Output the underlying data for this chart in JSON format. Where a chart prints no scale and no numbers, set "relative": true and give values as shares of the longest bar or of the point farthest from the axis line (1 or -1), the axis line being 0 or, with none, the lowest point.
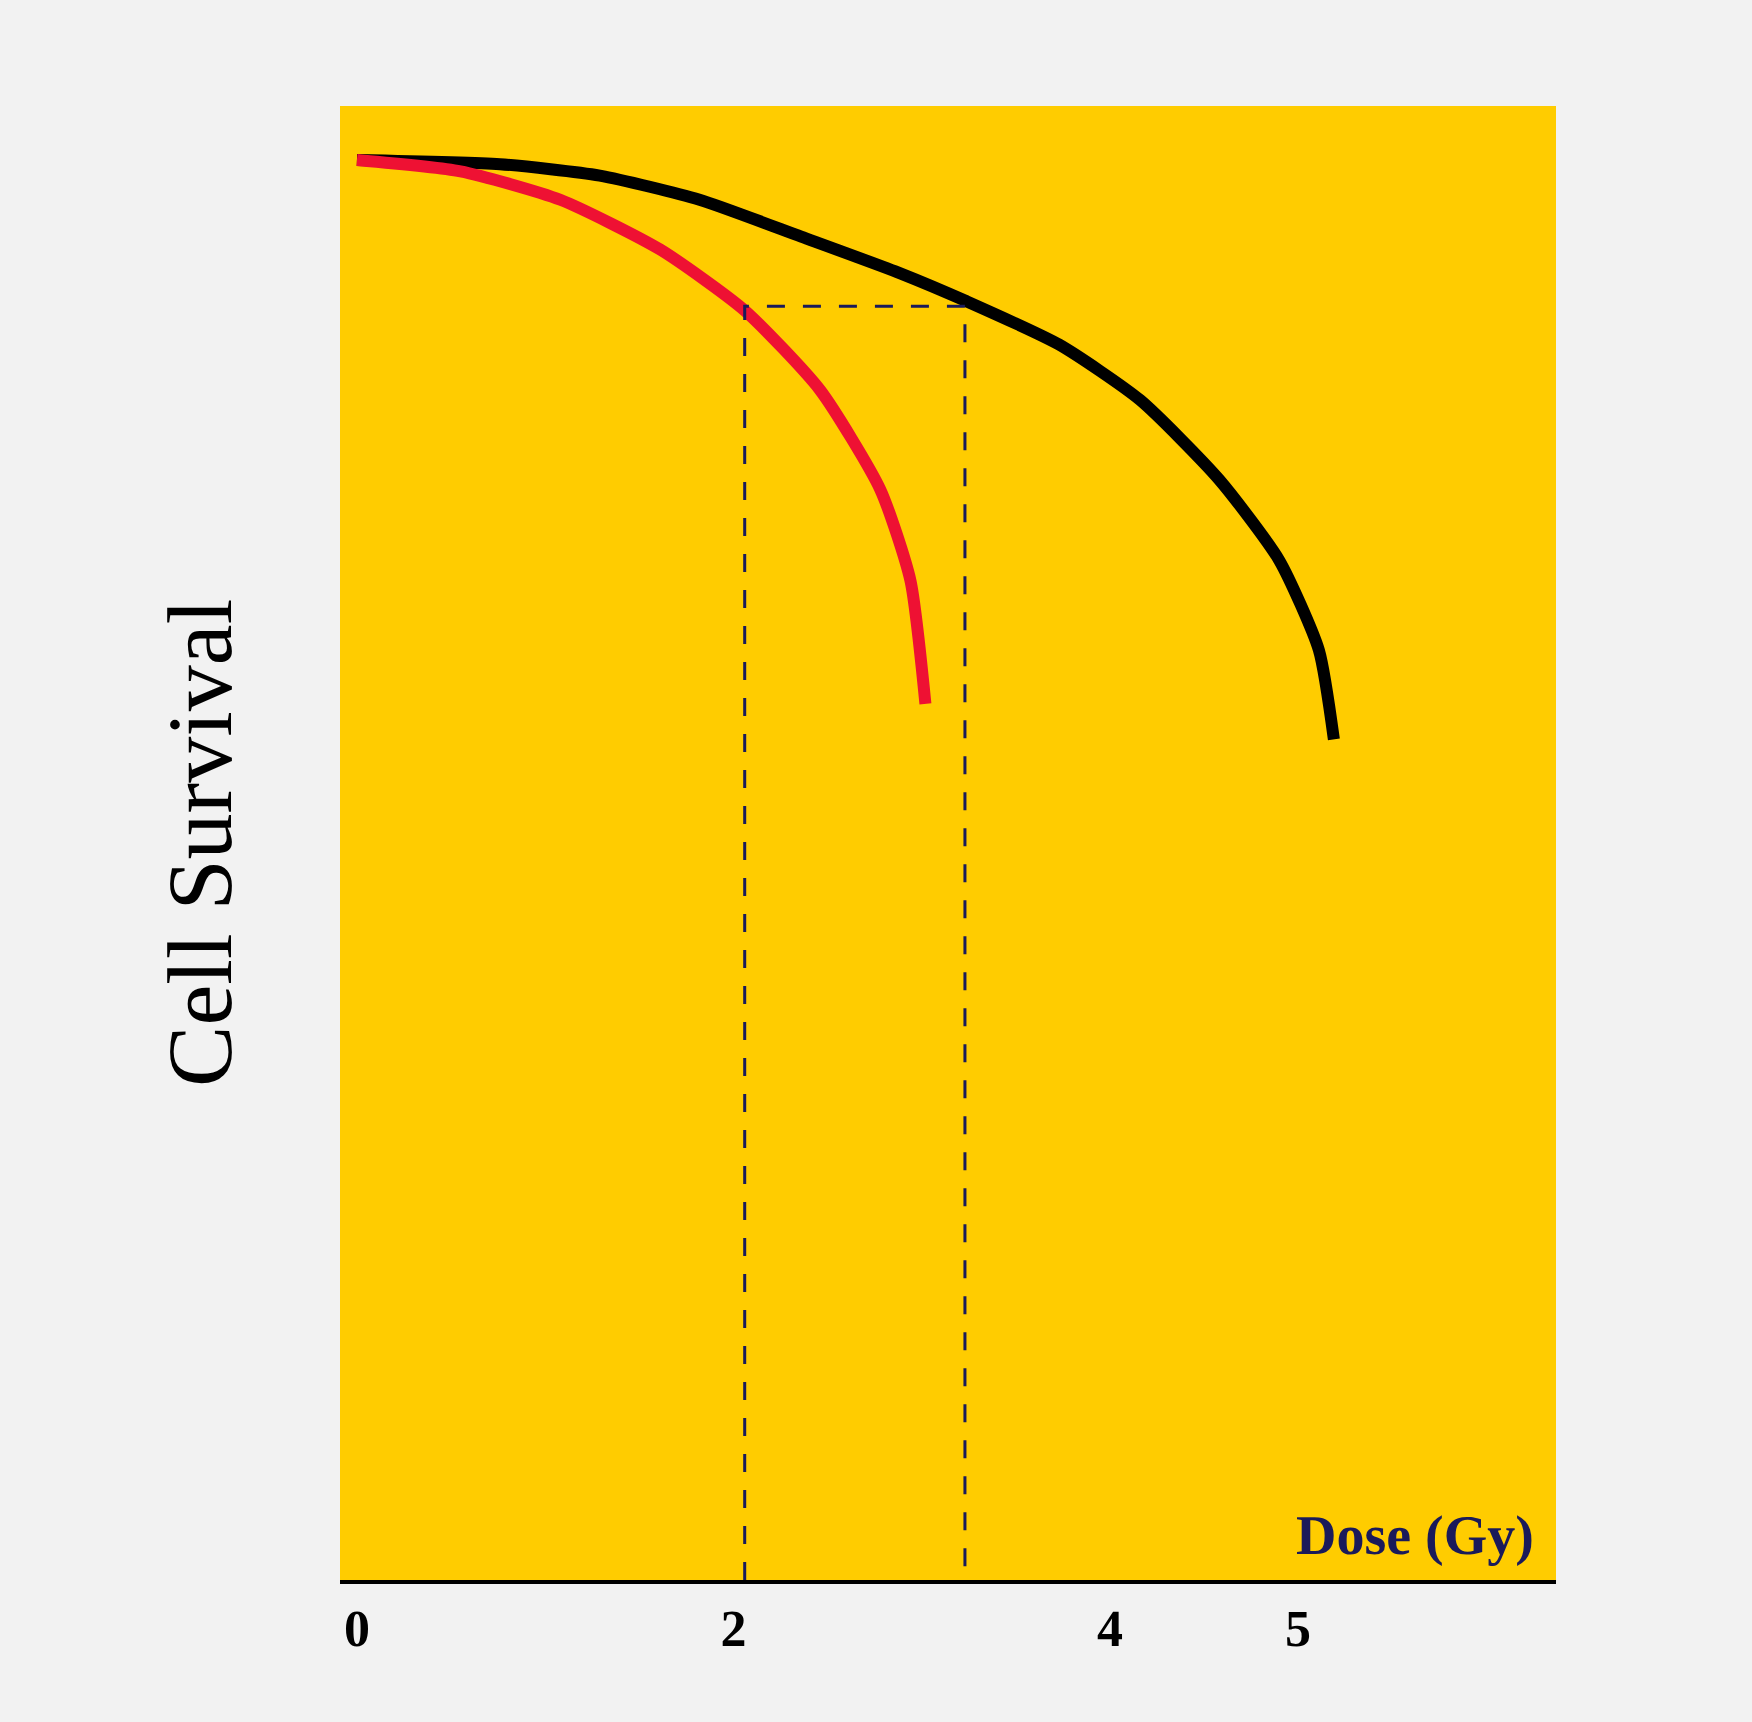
{
  "chart_data": {
    "type": "line",
    "xlabel": "Dose (Gy)",
    "ylabel": "Cell Survival",
    "relative": true,
    "xlim": [
      -0.09,
      6.37
    ],
    "xticks": [
      0,
      2,
      4,
      5
    ],
    "grid": false,
    "legend": false,
    "marker": "none",
    "line_style": "solid",
    "series": [
      {
        "color": "#000000",
        "x": [
          0,
          0.76,
          1.29,
          1.82,
          2.36,
          2.89,
          3.23,
          3.73,
          4.16,
          4.58,
          4.9,
          5.11,
          5.19
        ],
        "values": [
          1,
          0.997,
          0.989,
          0.972,
          0.946,
          0.92,
          0.901,
          0.87,
          0.831,
          0.775,
          0.718,
          0.655,
          0.592
        ]
      },
      {
        "color": "#ee1133",
        "x": [
          0,
          0.55,
          1.08,
          1.61,
          2.06,
          2.46,
          2.78,
          2.94,
          3.02
        ],
        "values": [
          1,
          0.992,
          0.972,
          0.937,
          0.894,
          0.838,
          0.768,
          0.704,
          0.617
        ]
      },
      {
        "color": "#1a1a5a",
        "line_style": "dashed",
        "x": [
          2.06,
          2.06,
          3.23,
          3.23
        ],
        "values": [
          0,
          0.897,
          0.897,
          0
        ]
      }
    ]
  }
}
